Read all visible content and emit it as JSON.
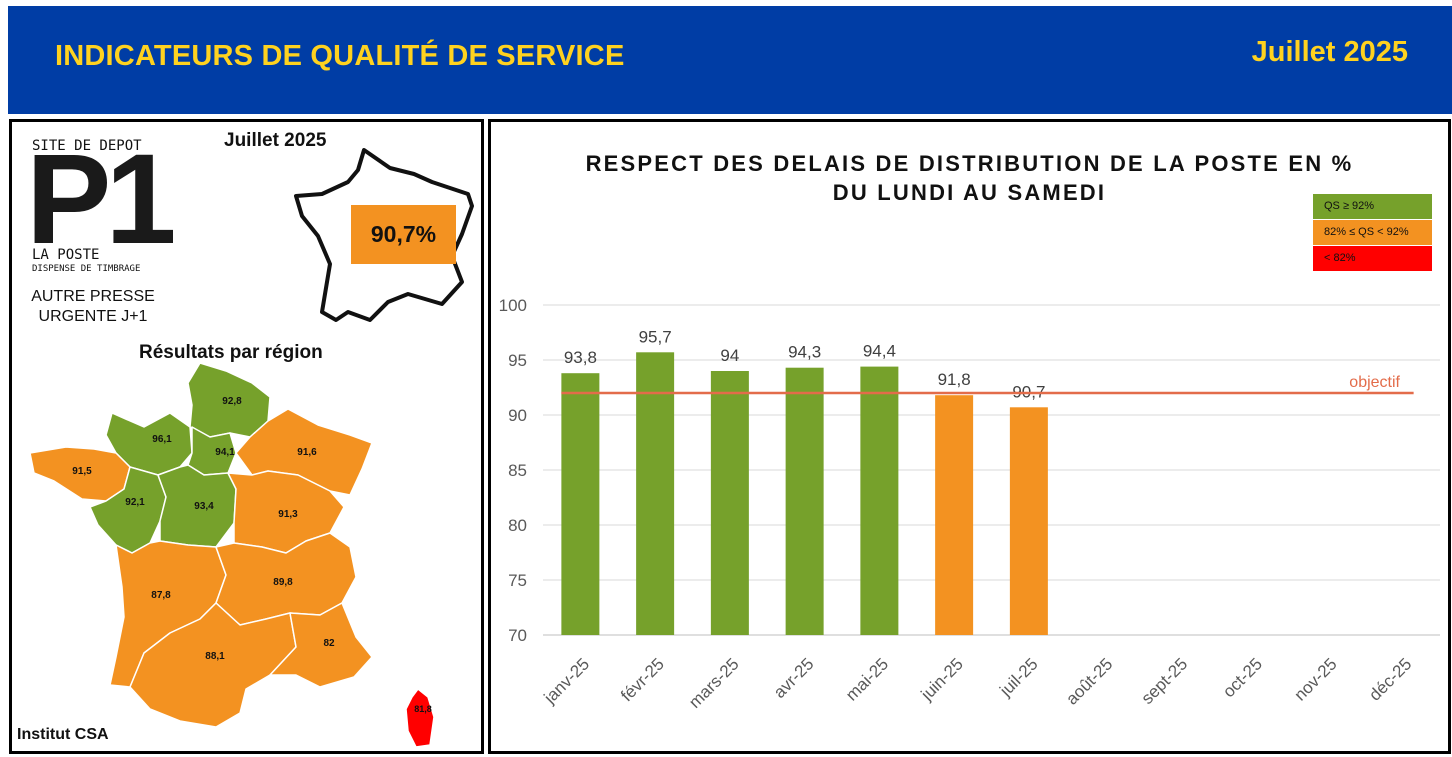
{
  "header": {
    "title": "INDICATEURS DE QUALITÉ DE SERVICE",
    "date": "Juillet 2025"
  },
  "colors": {
    "header_bg": "#003DA5",
    "header_text": "#FFD21F",
    "green": "#76A12B",
    "orange": "#F39221",
    "red": "#FF0000",
    "objective_line": "#E36C4A"
  },
  "left_panel": {
    "logo": {
      "top_text": "SITE DE DEPOT",
      "main": "P1",
      "sub1": "LA POSTE",
      "sub2": "DISPENSE DE TIMBRAGE"
    },
    "product": [
      "AUTRE PRESSE",
      "URGENTE J+1"
    ],
    "month": "Juillet 2025",
    "national_score": "90,7%",
    "region_title": "Résultats par région",
    "regions": [
      {
        "name": "nord",
        "value": "92,8",
        "status": "green"
      },
      {
        "name": "normandie",
        "value": "96,1",
        "status": "green"
      },
      {
        "name": "ile-de-france",
        "value": "94,1",
        "status": "green"
      },
      {
        "name": "bretagne",
        "value": "91,5",
        "status": "orange"
      },
      {
        "name": "grand-est",
        "value": "91,6",
        "status": "orange"
      },
      {
        "name": "pays-de-la-loire",
        "value": "92,1",
        "status": "green"
      },
      {
        "name": "centre",
        "value": "93,4",
        "status": "green"
      },
      {
        "name": "bourgogne",
        "value": "91,3",
        "status": "orange"
      },
      {
        "name": "nouvelle-aquitaine",
        "value": "87,8",
        "status": "orange"
      },
      {
        "name": "auvergne-rhone-alpes",
        "value": "89,8",
        "status": "orange"
      },
      {
        "name": "occitanie",
        "value": "88,1",
        "status": "orange"
      },
      {
        "name": "paca",
        "value": "82",
        "status": "orange"
      },
      {
        "name": "corse",
        "value": "81,8",
        "status": "red"
      }
    ],
    "source": "Institut CSA"
  },
  "chart_data": {
    "type": "bar",
    "title": "RESPECT DES DELAIS DE DISTRIBUTION DE LA POSTE EN %",
    "subtitle": "DU LUNDI AU SAMEDI",
    "categories": [
      "janv-25",
      "févr-25",
      "mars-25",
      "avr-25",
      "mai-25",
      "juin-25",
      "juil-25",
      "août-25",
      "sept-25",
      "oct-25",
      "nov-25",
      "déc-25"
    ],
    "values": [
      93.8,
      95.7,
      94,
      94.3,
      94.4,
      91.8,
      90.7,
      null,
      null,
      null,
      null,
      null
    ],
    "value_labels": [
      "93,8",
      "95,7",
      "94",
      "94,3",
      "94,4",
      "91,8",
      "90,7",
      "",
      "",
      "",
      "",
      ""
    ],
    "bar_status": [
      "green",
      "green",
      "green",
      "green",
      "green",
      "orange",
      "orange",
      null,
      null,
      null,
      null,
      null
    ],
    "ylim": [
      70,
      100
    ],
    "yticks": [
      70,
      75,
      80,
      85,
      90,
      95,
      100
    ],
    "objective": {
      "value": 92,
      "label": "objectif"
    },
    "legend": [
      {
        "label": "QS ≥ 92%",
        "status": "green"
      },
      {
        "label": "82% ≤ QS < 92%",
        "status": "orange"
      },
      {
        "label": "< 82%",
        "status": "red"
      }
    ],
    "grid": true
  }
}
